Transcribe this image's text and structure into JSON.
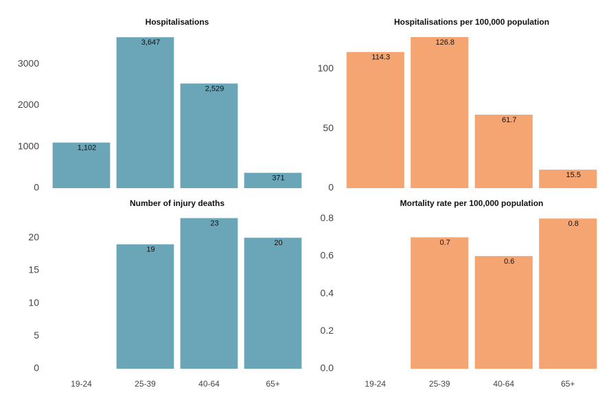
{
  "chart_data": [
    {
      "type": "bar",
      "title": "Hospitalisations",
      "values": [
        1102,
        3647,
        2529,
        371
      ],
      "value_labels": [
        "1,102",
        "3,647",
        "2,529",
        "371"
      ],
      "color": "#6aa5b8",
      "ylim": [
        0,
        3800
      ],
      "yticks": [
        0,
        1000,
        2000,
        3000
      ]
    },
    {
      "type": "bar",
      "title": "Hospitalisations per 100,000 population",
      "values": [
        114.3,
        126.8,
        61.7,
        15.5
      ],
      "color": "#f5a572",
      "ylim": [
        0,
        132
      ],
      "yticks": [
        0,
        50,
        100
      ]
    },
    {
      "type": "bar",
      "title": "Number of injury deaths",
      "categories": [
        "19-24",
        "25-39",
        "40-64",
        "65+"
      ],
      "values": [
        null,
        19,
        23,
        20
      ],
      "color": "#6aa5b8",
      "ylim": [
        0,
        23.8
      ],
      "yticks": [
        0,
        5,
        10,
        15,
        20
      ]
    },
    {
      "type": "bar",
      "title": "Mortality rate per 100,000 population",
      "categories": [
        "19-24",
        "25-39",
        "40-64",
        "65+"
      ],
      "values": [
        null,
        0.7,
        0.6,
        0.8
      ],
      "color": "#f5a572",
      "ylim": [
        0,
        0.83
      ],
      "yticks": [
        {
          "value": 0,
          "label": "0.0"
        },
        0.2,
        0.4,
        0.6,
        0.8
      ]
    }
  ]
}
